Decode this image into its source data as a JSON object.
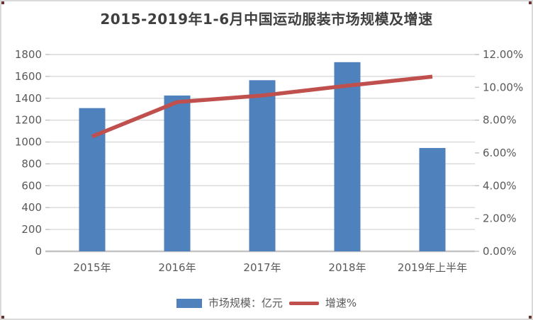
{
  "window": {
    "background": "#ffffff",
    "border_color": "#d9d9d9"
  },
  "chart_data": {
    "type": "combo-bar-line",
    "title": "2015-2019年1-6月中国运动服装市场规模及增速",
    "categories": [
      "2015年",
      "2016年",
      "2017年",
      "2018年",
      "2019年上半年"
    ],
    "series": [
      {
        "name": "市场规模：亿元",
        "type": "bar",
        "axis": "left",
        "color": "#4F81BD",
        "values": [
          1310,
          1425,
          1565,
          1730,
          945
        ]
      },
      {
        "name": "增速%",
        "type": "line",
        "axis": "right",
        "color": "#C0504D",
        "values": [
          7.0,
          9.1,
          9.5,
          10.1,
          10.65
        ]
      }
    ],
    "left_axis": {
      "min": 0,
      "max": 1800,
      "step": 200,
      "ticks": [
        "0",
        "200",
        "400",
        "600",
        "800",
        "1000",
        "1200",
        "1400",
        "1600",
        "1800"
      ]
    },
    "right_axis": {
      "min": 0,
      "max": 12,
      "step": 2,
      "ticks": [
        "0.00%",
        "2.00%",
        "4.00%",
        "6.00%",
        "8.00%",
        "10.00%",
        "12.00%"
      ]
    },
    "grid": true,
    "legend_position": "bottom",
    "text_color": "#595959",
    "grid_color": "#d9d9d9",
    "axis_line_color": "#c3c3c3",
    "tick_color": "#bfbfbf"
  }
}
